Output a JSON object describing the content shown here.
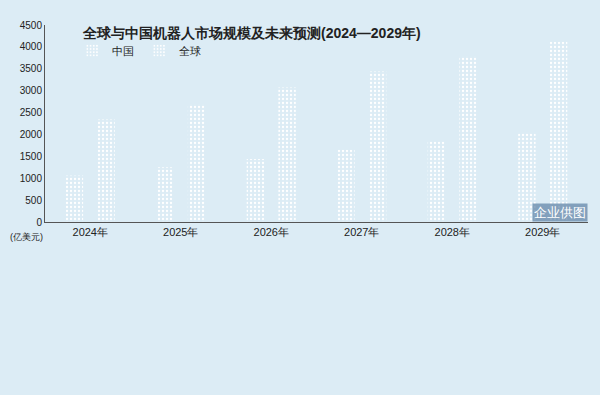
{
  "chart_data": {
    "type": "bar",
    "title": "全球与中国机器人市场规模及未来预测(2024—2029年)",
    "y_label": "(亿美元)",
    "credit": "企业供图",
    "categories": [
      "2024年",
      "2025年",
      "2026年",
      "2027年",
      "2028年",
      "2029年"
    ],
    "series": [
      {
        "name": "中国",
        "color": "#e8914a",
        "values": [
          1060,
          1250,
          1440,
          1650,
          1840,
          2020
        ]
      },
      {
        "name": "全球",
        "color": "#4a78c4",
        "values": [
          2340,
          2690,
          3070,
          3440,
          3780,
          4120
        ]
      }
    ],
    "ylim": [
      0,
      4500
    ],
    "yticks": [
      0,
      500,
      1000,
      1500,
      2000,
      2500,
      3000,
      3500,
      4000,
      4500
    ],
    "grid": false,
    "legend": "upper left"
  }
}
